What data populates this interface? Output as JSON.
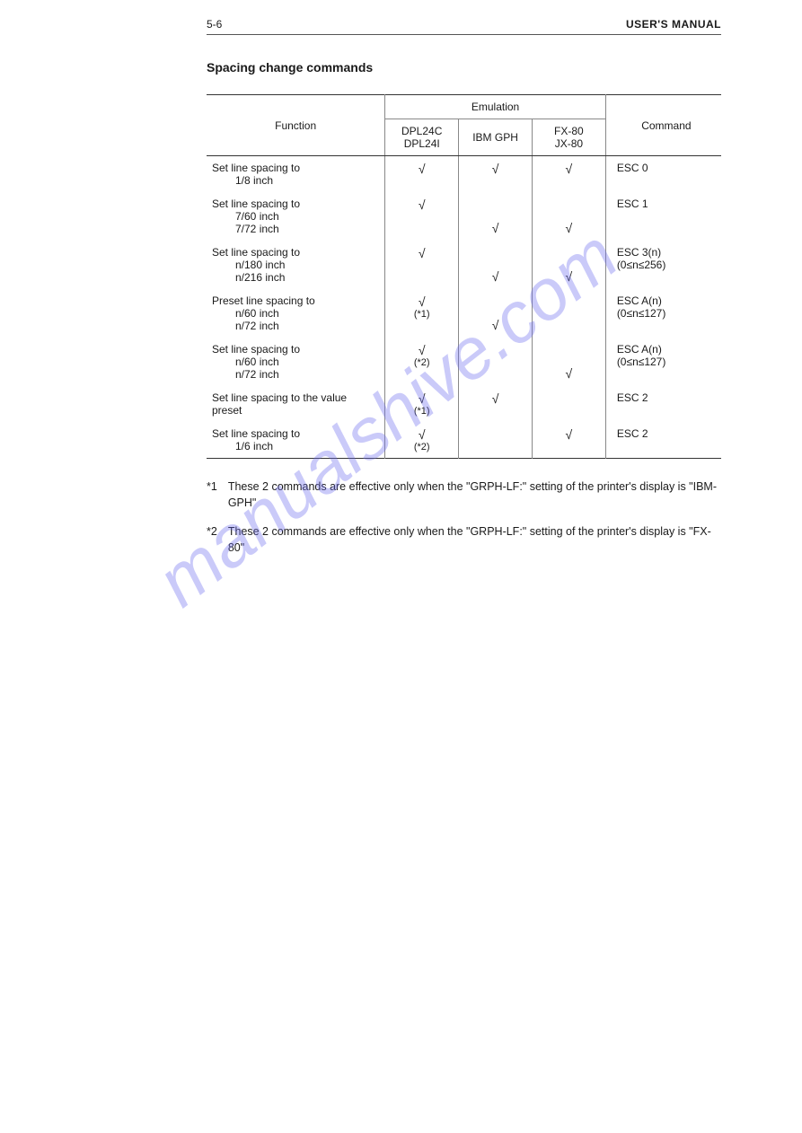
{
  "header": {
    "page_num": "5-6",
    "manual_label": "USER'S MANUAL"
  },
  "title": "Spacing change commands",
  "table": {
    "headers": {
      "function": "Function",
      "emulation": "Emulation",
      "emu1_a": "DPL24C",
      "emu1_b": "DPL24I",
      "emu2": "IBM GPH",
      "emu3_a": "FX-80",
      "emu3_b": "JX-80",
      "command": "Command"
    },
    "rows": [
      {
        "func_main": "Set line spacing to",
        "func_subs": [
          "1/8 inch"
        ],
        "emu1": "√",
        "emu1_note": "",
        "emu2": "√",
        "emu3": "√",
        "cmd": "ESC 0",
        "cmd2": ""
      },
      {
        "func_main": "Set line spacing to",
        "func_subs": [
          "7/60 inch",
          "7/72 inch"
        ],
        "emu1": "√",
        "emu1_note": "",
        "emu2": "√",
        "emu2_align": "bottom",
        "emu3": "√",
        "emu3_align": "bottom",
        "cmd": "ESC 1",
        "cmd2": ""
      },
      {
        "func_main": "Set line spacing to",
        "func_subs": [
          "n/180 inch",
          "n/216 inch"
        ],
        "emu1": "√",
        "emu1_note": "",
        "emu2": "√",
        "emu2_align": "bottom",
        "emu3": "√",
        "emu3_align": "bottom",
        "cmd": "ESC 3(n)",
        "cmd2": "(0≤n≤256)"
      },
      {
        "func_main": "Preset line spacing to",
        "func_subs": [
          "n/60 inch",
          "n/72 inch"
        ],
        "emu1": "√",
        "emu1_note": "(*1)",
        "emu2": "√",
        "emu2_align": "bottom",
        "emu3": "",
        "cmd": "ESC A(n)",
        "cmd2": "(0≤n≤127)"
      },
      {
        "func_main": "Set line spacing to",
        "func_subs": [
          "n/60 inch",
          "n/72 inch"
        ],
        "emu1": "√",
        "emu1_note": "(*2)",
        "emu2": "",
        "emu3": "√",
        "emu3_align": "bottom",
        "cmd": "ESC A(n)",
        "cmd2": "(0≤n≤127)"
      },
      {
        "func_main": "Set line spacing to the value preset",
        "func_subs": [],
        "emu1": "√",
        "emu1_note": "(*1)",
        "emu2": "√",
        "emu3": "",
        "cmd": "ESC 2",
        "cmd2": ""
      },
      {
        "func_main": "Set line spacing to",
        "func_subs": [
          "1/6 inch"
        ],
        "emu1": "√",
        "emu1_note": "(*2)",
        "emu2": "",
        "emu3": "√",
        "cmd": "ESC 2",
        "cmd2": ""
      }
    ]
  },
  "footnotes": {
    "f1_mark": "*1",
    "f1_text": "These 2 commands are effective only when the \"GRPH-LF:\" setting of the printer's display is \"IBM-GPH\"",
    "f2_mark": "*2",
    "f2_text": "These 2 commands are effective only when the \"GRPH-LF:\" setting of the printer's display is \"FX-80\""
  },
  "watermark": "manualshive.com"
}
